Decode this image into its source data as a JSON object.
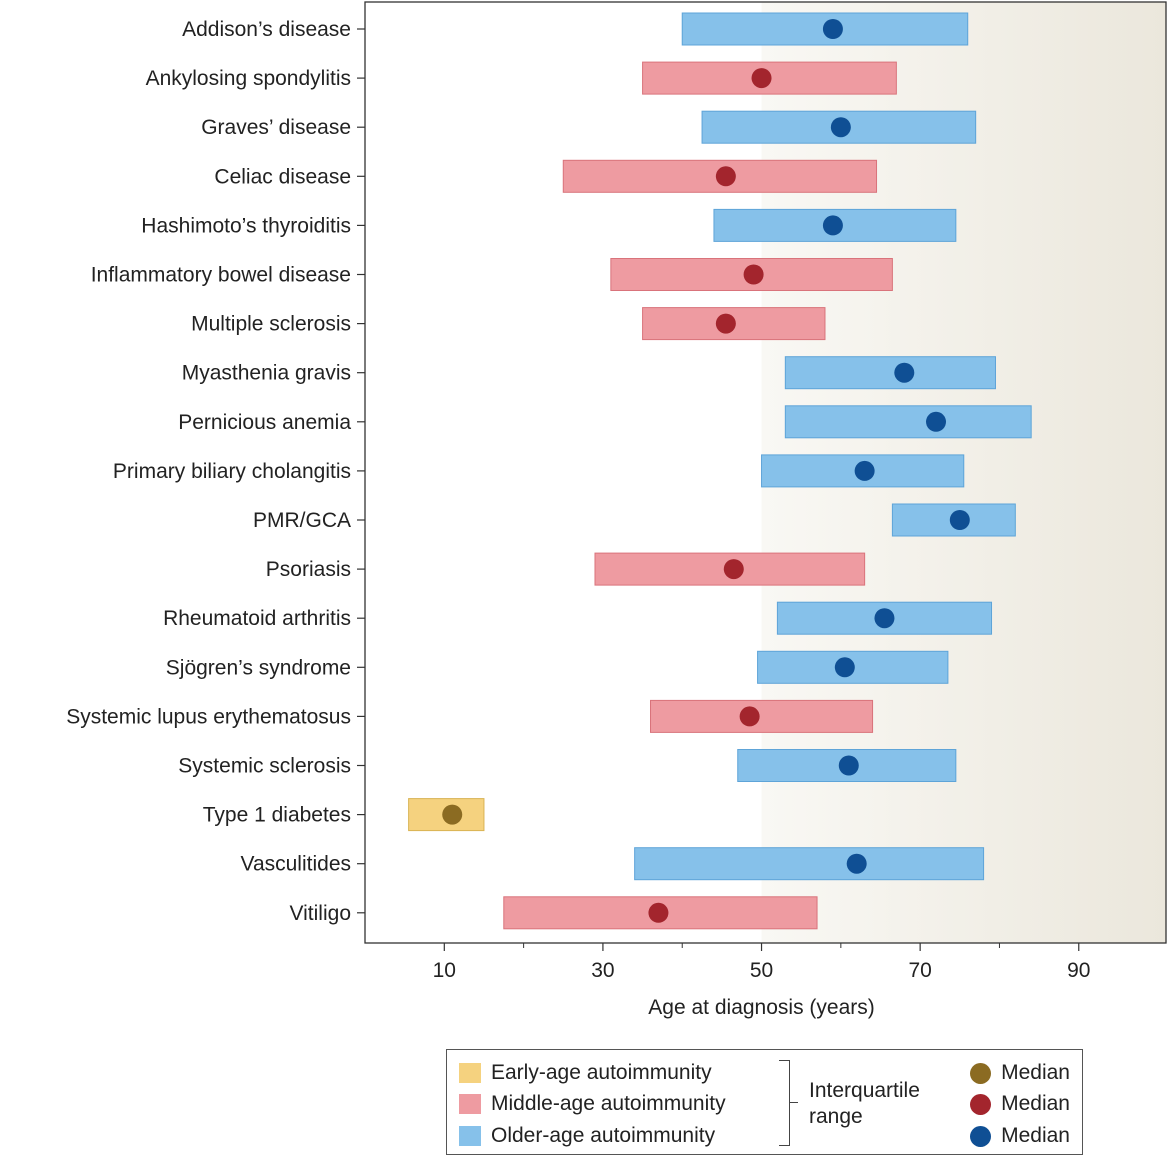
{
  "chart_data": {
    "type": "range",
    "xlabel": "Age at diagnosis (years)",
    "ylabel": "",
    "xlim": [
      0,
      101
    ],
    "xticks_major": [
      10,
      30,
      50,
      70,
      90
    ],
    "xticks_minor": [
      20,
      40,
      60,
      80
    ],
    "background_gradient_from": 50,
    "colors": {
      "early_bar": "#f5d27f",
      "middle_bar": "#ee9ba1",
      "older_bar": "#86c1ea",
      "early_dot": "#8b6b22",
      "middle_dot": "#a3252d",
      "older_dot": "#0f4f94"
    },
    "categories": [
      {
        "name": "Addison’s disease",
        "group": "older",
        "q1": 40,
        "median": 59,
        "q3": 76
      },
      {
        "name": "Ankylosing spondylitis",
        "group": "middle",
        "q1": 35,
        "median": 50,
        "q3": 67
      },
      {
        "name": "Graves’ disease",
        "group": "older",
        "q1": 42.5,
        "median": 60,
        "q3": 77
      },
      {
        "name": "Celiac disease",
        "group": "middle",
        "q1": 25,
        "median": 45.5,
        "q3": 64.5
      },
      {
        "name": "Hashimoto’s thyroiditis",
        "group": "older",
        "q1": 44,
        "median": 59,
        "q3": 74.5
      },
      {
        "name": "Inflammatory bowel disease",
        "group": "middle",
        "q1": 31,
        "median": 49,
        "q3": 66.5
      },
      {
        "name": "Multiple sclerosis",
        "group": "middle",
        "q1": 35,
        "median": 45.5,
        "q3": 58
      },
      {
        "name": "Myasthenia gravis",
        "group": "older",
        "q1": 53,
        "median": 68,
        "q3": 79.5
      },
      {
        "name": "Pernicious anemia",
        "group": "older",
        "q1": 53,
        "median": 72,
        "q3": 84
      },
      {
        "name": "Primary biliary cholangitis",
        "group": "older",
        "q1": 50,
        "median": 63,
        "q3": 75.5
      },
      {
        "name": "PMR/GCA",
        "group": "older",
        "q1": 66.5,
        "median": 75,
        "q3": 82
      },
      {
        "name": "Psoriasis",
        "group": "middle",
        "q1": 29,
        "median": 46.5,
        "q3": 63
      },
      {
        "name": "Rheumatoid arthritis",
        "group": "older",
        "q1": 52,
        "median": 65.5,
        "q3": 79
      },
      {
        "name": "Sjögren’s syndrome",
        "group": "older",
        "q1": 49.5,
        "median": 60.5,
        "q3": 73.5
      },
      {
        "name": "Systemic lupus erythematosus",
        "group": "middle",
        "q1": 36,
        "median": 48.5,
        "q3": 64
      },
      {
        "name": "Systemic sclerosis",
        "group": "older",
        "q1": 47,
        "median": 61,
        "q3": 74.5
      },
      {
        "name": "Type 1 diabetes",
        "group": "early",
        "q1": 5.5,
        "median": 11,
        "q3": 15
      },
      {
        "name": "Vasculitides",
        "group": "older",
        "q1": 34,
        "median": 62,
        "q3": 78
      },
      {
        "name": "Vitiligo",
        "group": "middle",
        "q1": 17.5,
        "median": 37,
        "q3": 57
      }
    ]
  },
  "legend": {
    "early_label": "Early-age autoimmunity",
    "middle_label": "Middle-age autoimmunity",
    "older_label": "Older-age autoimmunity",
    "iqr_line1": "Interquartile",
    "iqr_line2": "range",
    "median_label_1": "Median",
    "median_label_2": "Median",
    "median_label_3": "Median"
  }
}
